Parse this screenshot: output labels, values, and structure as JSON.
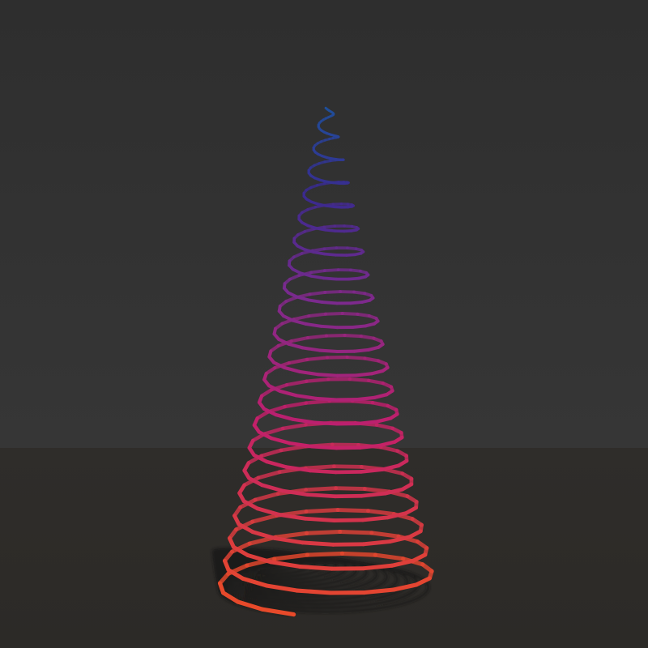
{
  "scene": {
    "subject": "conical-helix-spring",
    "colors": {
      "background_top": "#2e2e2e",
      "background_bottom": "#363636",
      "floor": "#2c2a27",
      "floor_far": "#2f2d2a",
      "shadow": "#141312",
      "gradient_top": "#1f4f9a",
      "gradient_upper": "#3a2a8f",
      "gradient_mid": "#7a2a8e",
      "gradient_lower": "#c21f6b",
      "gradient_bottom": "#e84a2a"
    }
  }
}
